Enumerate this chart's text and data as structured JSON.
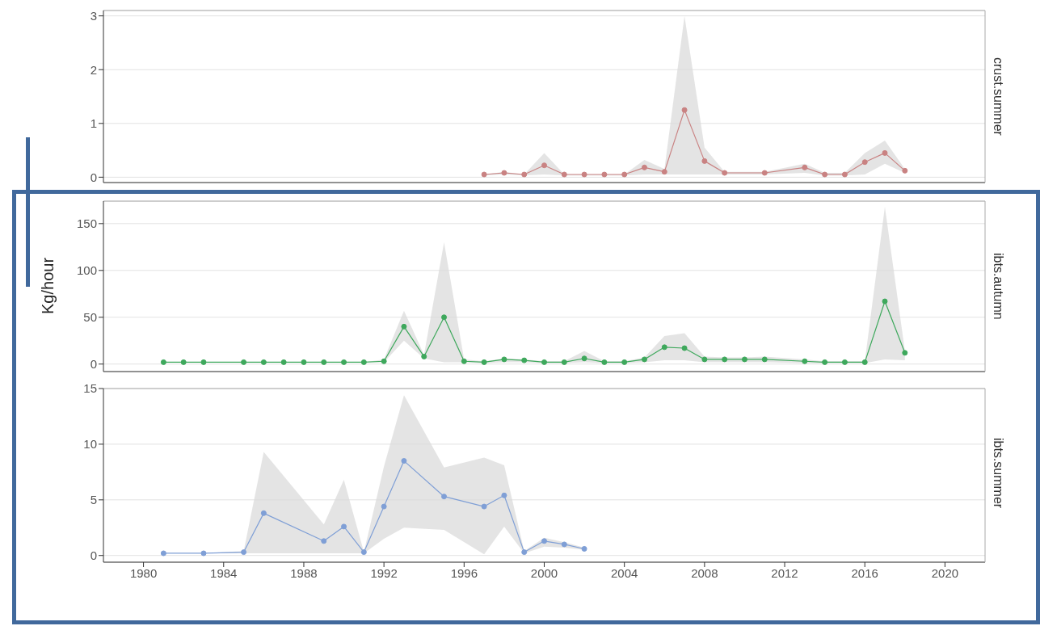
{
  "chart_data": [
    {
      "type": "line",
      "title": "crust.summer",
      "xlim": [
        1978,
        2022
      ],
      "xticks": [
        1980,
        1984,
        1988,
        1992,
        1996,
        2000,
        2004,
        2008,
        2012,
        2016,
        2020
      ],
      "ylim": [
        -0.1,
        3.1
      ],
      "yticks": [
        0,
        1,
        2,
        3
      ],
      "grid": "y",
      "marker": "circle",
      "tick_labels": "y",
      "series": [
        {
          "color": "#c98282",
          "x": [
            1997,
            1998,
            1999,
            2000,
            2001,
            2002,
            2003,
            2004,
            2005,
            2006,
            2007,
            2008,
            2009,
            2011,
            2013,
            2014,
            2015,
            2016,
            2017,
            2018
          ],
          "values": [
            0.05,
            0.08,
            0.05,
            0.22,
            0.05,
            0.05,
            0.05,
            0.05,
            0.18,
            0.1,
            1.25,
            0.3,
            0.08,
            0.08,
            0.18,
            0.05,
            0.05,
            0.28,
            0.45,
            0.12
          ],
          "lower": [
            0.03,
            0.05,
            0.03,
            0.05,
            0.03,
            0.03,
            0.03,
            0.03,
            0.05,
            0.05,
            0.05,
            0.05,
            0.05,
            0.05,
            0.08,
            0.03,
            0.03,
            0.05,
            0.25,
            0.08
          ],
          "upper": [
            0.05,
            0.1,
            0.05,
            0.45,
            0.05,
            0.05,
            0.05,
            0.05,
            0.32,
            0.15,
            3.0,
            0.55,
            0.1,
            0.1,
            0.25,
            0.08,
            0.08,
            0.45,
            0.68,
            0.15
          ]
        }
      ]
    },
    {
      "type": "line",
      "title": "ibts.autumn",
      "ylabel": "Kg/hour",
      "xlim": [
        1978,
        2022
      ],
      "xticks": [
        1980,
        1984,
        1988,
        1992,
        1996,
        2000,
        2004,
        2008,
        2012,
        2016,
        2020
      ],
      "ylim": [
        -8,
        174
      ],
      "yticks": [
        0,
        50,
        100,
        150
      ],
      "grid": "y",
      "marker": "circle",
      "tick_labels": "y",
      "series": [
        {
          "color": "#3ea85c",
          "x": [
            1981,
            1982,
            1983,
            1985,
            1986,
            1987,
            1988,
            1989,
            1990,
            1991,
            1992,
            1993,
            1994,
            1995,
            1996,
            1997,
            1998,
            1999,
            2000,
            2001,
            2002,
            2003,
            2004,
            2005,
            2006,
            2007,
            2008,
            2009,
            2010,
            2011,
            2013,
            2014,
            2015,
            2016,
            2017,
            2018
          ],
          "values": [
            2,
            2,
            2,
            2,
            2,
            2,
            2,
            2,
            2,
            2,
            3,
            40,
            8,
            50,
            3,
            2,
            5,
            4,
            2,
            2,
            6,
            2,
            2,
            5,
            18,
            17,
            5,
            5,
            5,
            5,
            3,
            2,
            2,
            2,
            67,
            12
          ],
          "lower": [
            2,
            2,
            2,
            2,
            2,
            2,
            2,
            2,
            2,
            2,
            2,
            25,
            6,
            2,
            2,
            1,
            2,
            2,
            1,
            1,
            2,
            1,
            1,
            2,
            4,
            4,
            2,
            2,
            2,
            2,
            1,
            1,
            1,
            1,
            5,
            4
          ],
          "upper": [
            2,
            2,
            2,
            2,
            2,
            2,
            2,
            2,
            2,
            2,
            5,
            57,
            10,
            130,
            5,
            3,
            6,
            5,
            3,
            3,
            14,
            3,
            3,
            7,
            30,
            33,
            8,
            7,
            7,
            8,
            5,
            3,
            3,
            3,
            168,
            14
          ]
        }
      ]
    },
    {
      "type": "line",
      "title": "ibts.summer",
      "xlim": [
        1978,
        2022
      ],
      "xticks": [
        1980,
        1984,
        1988,
        1992,
        1996,
        2000,
        2004,
        2008,
        2012,
        2016,
        2020
      ],
      "ylim": [
        -0.6,
        15
      ],
      "yticks": [
        0,
        5,
        10,
        15
      ],
      "grid": "y",
      "marker": "circle",
      "series": [
        {
          "color": "#7f9fd6",
          "x": [
            1981,
            1983,
            1985,
            1986,
            1989,
            1990,
            1991,
            1992,
            1993,
            1995,
            1997,
            1998,
            1999,
            2000,
            2001,
            2002
          ],
          "values": [
            0.2,
            0.2,
            0.3,
            3.8,
            1.3,
            2.6,
            0.3,
            4.4,
            8.5,
            5.3,
            4.4,
            5.4,
            0.3,
            1.3,
            1.0,
            0.6
          ],
          "lower": [
            0.2,
            0.2,
            0.2,
            0.2,
            0.2,
            0.2,
            0.2,
            1.5,
            2.5,
            2.3,
            0.1,
            2.6,
            0.2,
            0.8,
            0.7,
            0.5
          ],
          "upper": [
            0.2,
            0.2,
            0.4,
            9.3,
            2.8,
            6.8,
            0.3,
            8.0,
            14.4,
            7.9,
            8.8,
            8.1,
            0.4,
            1.6,
            1.2,
            0.7
          ]
        }
      ]
    }
  ]
}
